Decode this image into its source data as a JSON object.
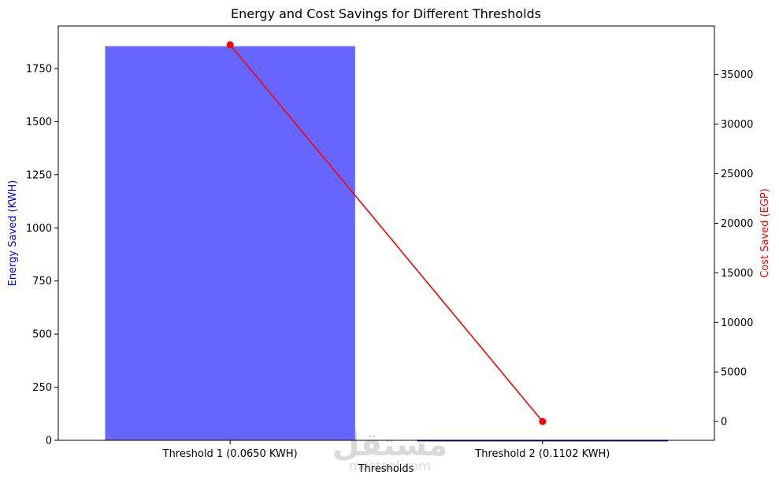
{
  "chart_data": {
    "type": "bar",
    "title": "Energy and Cost Savings for Different Thresholds",
    "xlabel": "Thresholds",
    "categories": [
      "Threshold 1 (0.0650 KWH)",
      "Threshold 2 (0.1102 KWH)"
    ],
    "series": [
      {
        "type": "bar",
        "axis": "left",
        "values": [
          1855,
          0.5
        ],
        "color": "#6666ff"
      },
      {
        "type": "line",
        "axis": "right",
        "values": [
          38000,
          0
        ],
        "color": "#ff0000"
      }
    ],
    "ylabel_left": "Energy Saved (KWH)",
    "ylabel_left_color": "#0000ff",
    "ylim_left": [
      0,
      1950
    ],
    "yticks_left": [
      0,
      250,
      500,
      750,
      1000,
      1250,
      1500,
      1750
    ],
    "ylabel_right": "Cost Saved (EGP)",
    "ylabel_right_color": "#ff0000",
    "ylim_right": [
      -1900,
      39900
    ],
    "yticks_right": [
      0,
      5000,
      10000,
      15000,
      20000,
      25000,
      30000,
      35000
    ],
    "grid": false
  },
  "watermark": {
    "glyphs": "مستقل",
    "text": "mostaql.com"
  }
}
